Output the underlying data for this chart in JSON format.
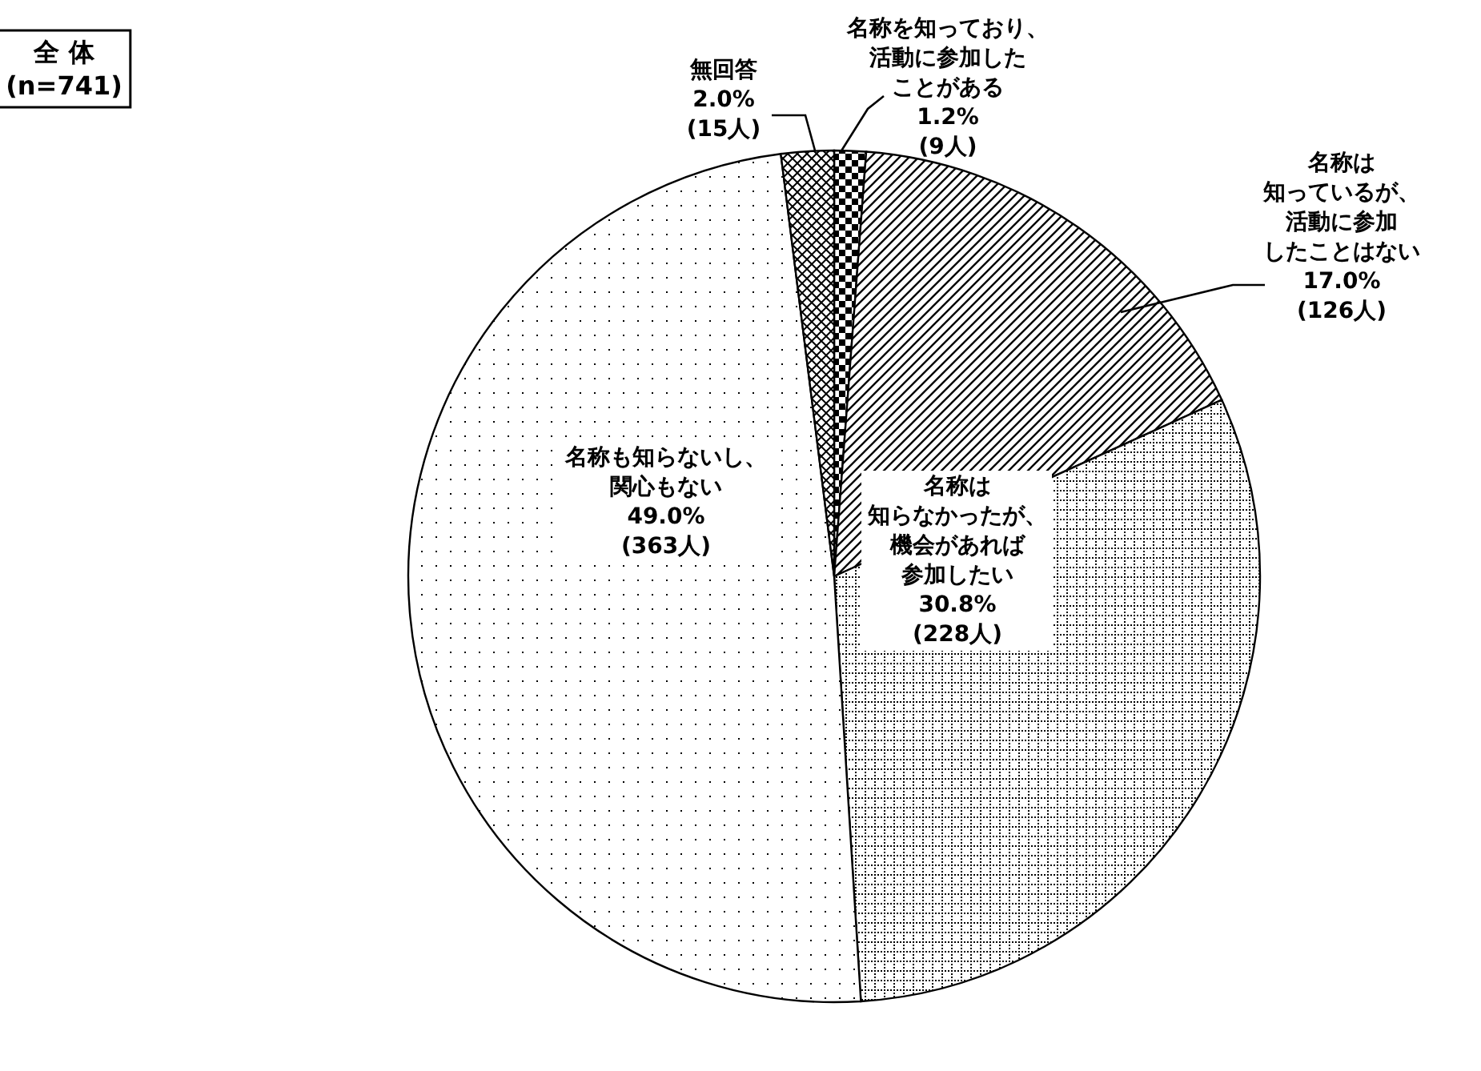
{
  "chart_data": {
    "type": "pie",
    "title": "全 体\n(n=741)",
    "categories": [
      "名称を知っており、活動に参加したことがある",
      "名称は知っているが、活動に参加したことはない",
      "名称は知らなかったが、機会があれば参加したい",
      "名称も知らないし、関心もない",
      "無回答"
    ],
    "values": [
      1.2,
      17.0,
      30.8,
      49.0,
      2.0
    ],
    "value_labels": [
      "1.2%\n(9人)",
      "17.0%\n(126人)",
      "30.8%\n(228人)",
      "49.0%\n(363人)",
      "2.0%\n(15人)"
    ],
    "colors": [
      "#000000",
      "#000000",
      "#000000",
      "#000000",
      "#000000"
    ]
  }
}
